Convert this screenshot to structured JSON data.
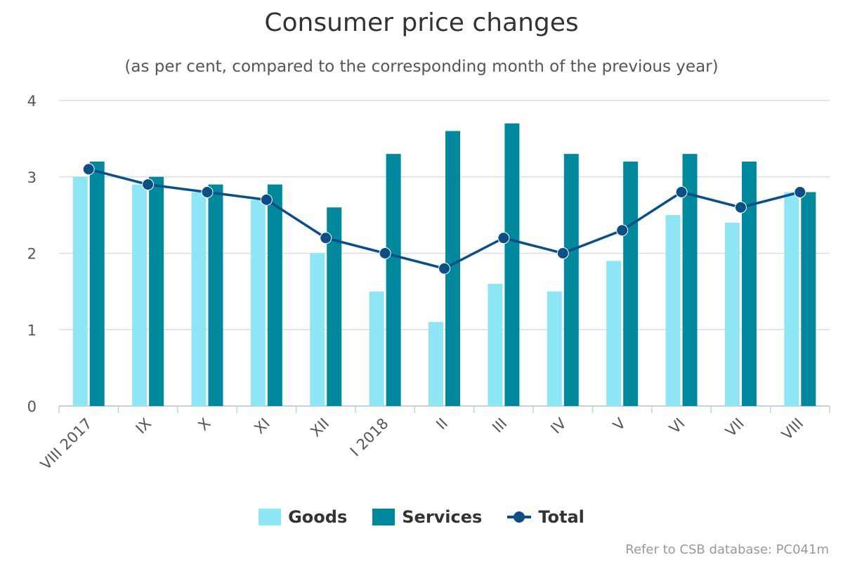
{
  "chart_data": {
    "type": "bar",
    "title": "Consumer price changes",
    "subtitle": "(as per cent, compared to the corresponding month of the previous year)",
    "categories": [
      "VIII 2017",
      "IX",
      "X",
      "XI",
      "XII",
      "I 2018",
      "II",
      "III",
      "IV",
      "V",
      "VI",
      "VII",
      "VIII"
    ],
    "ylim": [
      0,
      4
    ],
    "yticks": [
      "0",
      "1",
      "2",
      "3",
      "4"
    ],
    "grid": true,
    "legend_position": "bottom-center",
    "series": [
      {
        "name": "Goods",
        "type": "bar",
        "color": "#8ee6f5",
        "values": [
          3.0,
          2.9,
          2.8,
          2.7,
          2.0,
          1.5,
          1.1,
          1.6,
          1.5,
          1.9,
          2.5,
          2.4,
          2.8
        ]
      },
      {
        "name": "Services",
        "type": "bar",
        "color": "#00899c",
        "values": [
          3.2,
          3.0,
          2.9,
          2.9,
          2.6,
          3.3,
          3.6,
          3.7,
          3.3,
          3.2,
          3.3,
          3.2,
          2.8
        ]
      },
      {
        "name": "Total",
        "type": "line",
        "color": "#0b4f86",
        "values": [
          3.1,
          2.9,
          2.8,
          2.7,
          2.2,
          2.0,
          1.8,
          2.2,
          2.0,
          2.3,
          2.8,
          2.6,
          2.8
        ]
      }
    ]
  },
  "credits": "Refer to CSB database: PC041m"
}
